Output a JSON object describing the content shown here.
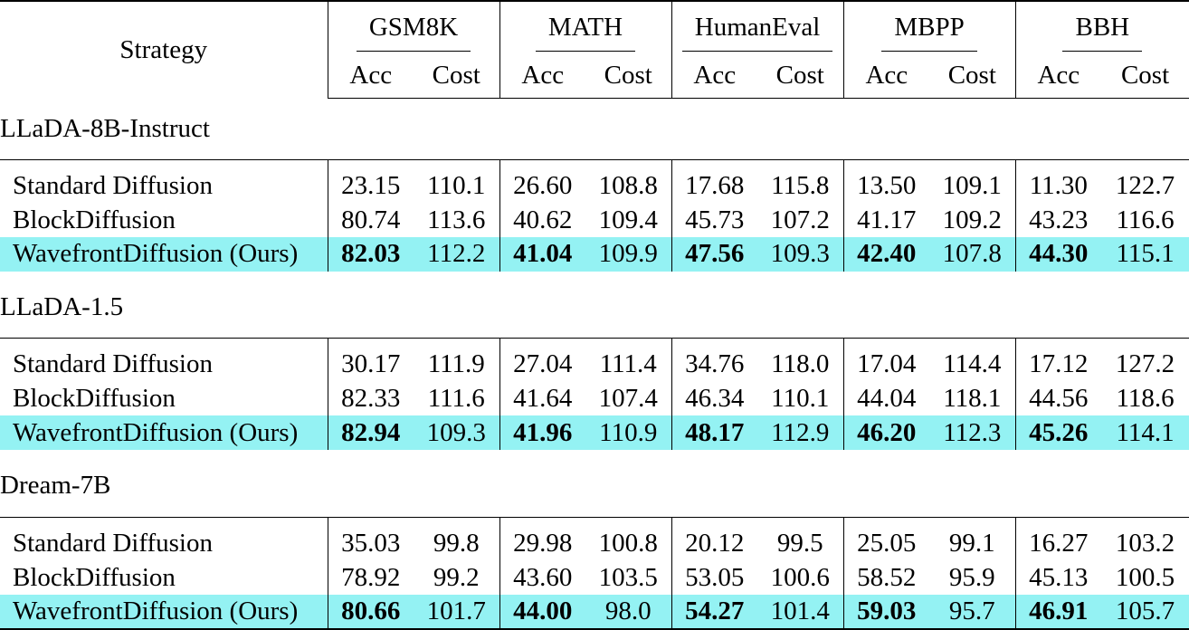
{
  "header": {
    "strategy_label": "Strategy",
    "acc_label": "Acc",
    "cost_label": "Cost",
    "benchmarks": [
      "GSM8K",
      "MATH",
      "HumanEval",
      "MBPP",
      "BBH"
    ]
  },
  "groups": [
    {
      "name": "LLaDA-8B-Instruct",
      "rows": [
        {
          "strategy": "Standard Diffusion",
          "cells": [
            "23.15",
            "110.1",
            "26.60",
            "108.8",
            "17.68",
            "115.8",
            "13.50",
            "109.1",
            "11.30",
            "122.7"
          ]
        },
        {
          "strategy": "BlockDiffusion",
          "cells": [
            "80.74",
            "113.6",
            "40.62",
            "109.4",
            "45.73",
            "107.2",
            "41.17",
            "109.2",
            "43.23",
            "116.6"
          ]
        },
        {
          "strategy": "WavefrontDiffusion (Ours)",
          "cells": [
            "82.03",
            "112.2",
            "41.04",
            "109.9",
            "47.56",
            "109.3",
            "42.40",
            "107.8",
            "44.30",
            "115.1"
          ]
        }
      ]
    },
    {
      "name": "LLaDA-1.5",
      "rows": [
        {
          "strategy": "Standard Diffusion",
          "cells": [
            "30.17",
            "111.9",
            "27.04",
            "111.4",
            "34.76",
            "118.0",
            "17.04",
            "114.4",
            "17.12",
            "127.2"
          ]
        },
        {
          "strategy": "BlockDiffusion",
          "cells": [
            "82.33",
            "111.6",
            "41.64",
            "107.4",
            "46.34",
            "110.1",
            "44.04",
            "118.1",
            "44.56",
            "118.6"
          ]
        },
        {
          "strategy": "WavefrontDiffusion (Ours)",
          "cells": [
            "82.94",
            "109.3",
            "41.96",
            "110.9",
            "48.17",
            "112.9",
            "46.20",
            "112.3",
            "45.26",
            "114.1"
          ]
        }
      ]
    },
    {
      "name": "Dream-7B",
      "rows": [
        {
          "strategy": "Standard Diffusion",
          "cells": [
            "35.03",
            "99.8",
            "29.98",
            "100.8",
            "20.12",
            "99.5",
            "25.05",
            "99.1",
            "16.27",
            "103.2"
          ]
        },
        {
          "strategy": "BlockDiffusion",
          "cells": [
            "78.92",
            "99.2",
            "43.60",
            "103.5",
            "53.05",
            "100.6",
            "58.52",
            "95.9",
            "45.13",
            "100.5"
          ]
        },
        {
          "strategy": "WavefrontDiffusion (Ours)",
          "cells": [
            "80.66",
            "101.7",
            "44.00",
            "98.0",
            "54.27",
            "101.4",
            "59.03",
            "95.7",
            "46.91",
            "105.7"
          ]
        }
      ]
    }
  ],
  "colors": {
    "highlight_row": "#94f2f3",
    "rule": "#000000"
  }
}
